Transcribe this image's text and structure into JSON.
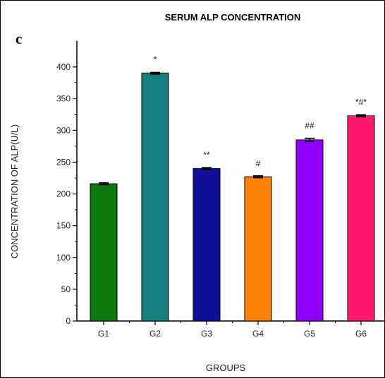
{
  "panel_label": "c",
  "chart_data": {
    "type": "bar",
    "title": "SERUM ALP CONCENTRATION",
    "xlabel": "GROUPS",
    "ylabel": "CONCENTRATION OF ALP(U/L)",
    "ylim": [
      0,
      400
    ],
    "yticks": [
      "0",
      "50",
      "100",
      "150",
      "200",
      "250",
      "300",
      "350",
      "400"
    ],
    "categories": [
      "G1",
      "G2",
      "G3",
      "G4",
      "G5",
      "G6"
    ],
    "values": [
      216,
      390,
      240,
      227,
      285,
      323
    ],
    "errors": [
      1.5,
      1.5,
      1.5,
      1.5,
      2.5,
      1.5
    ],
    "annotations": [
      "",
      "*",
      "**",
      "#",
      "##",
      "*#*"
    ],
    "colors": [
      "#0d7a0d",
      "#168080",
      "#10109a",
      "#ff8008",
      "#8f00ff",
      "#ff1770"
    ],
    "grid": false,
    "legend": "none"
  }
}
